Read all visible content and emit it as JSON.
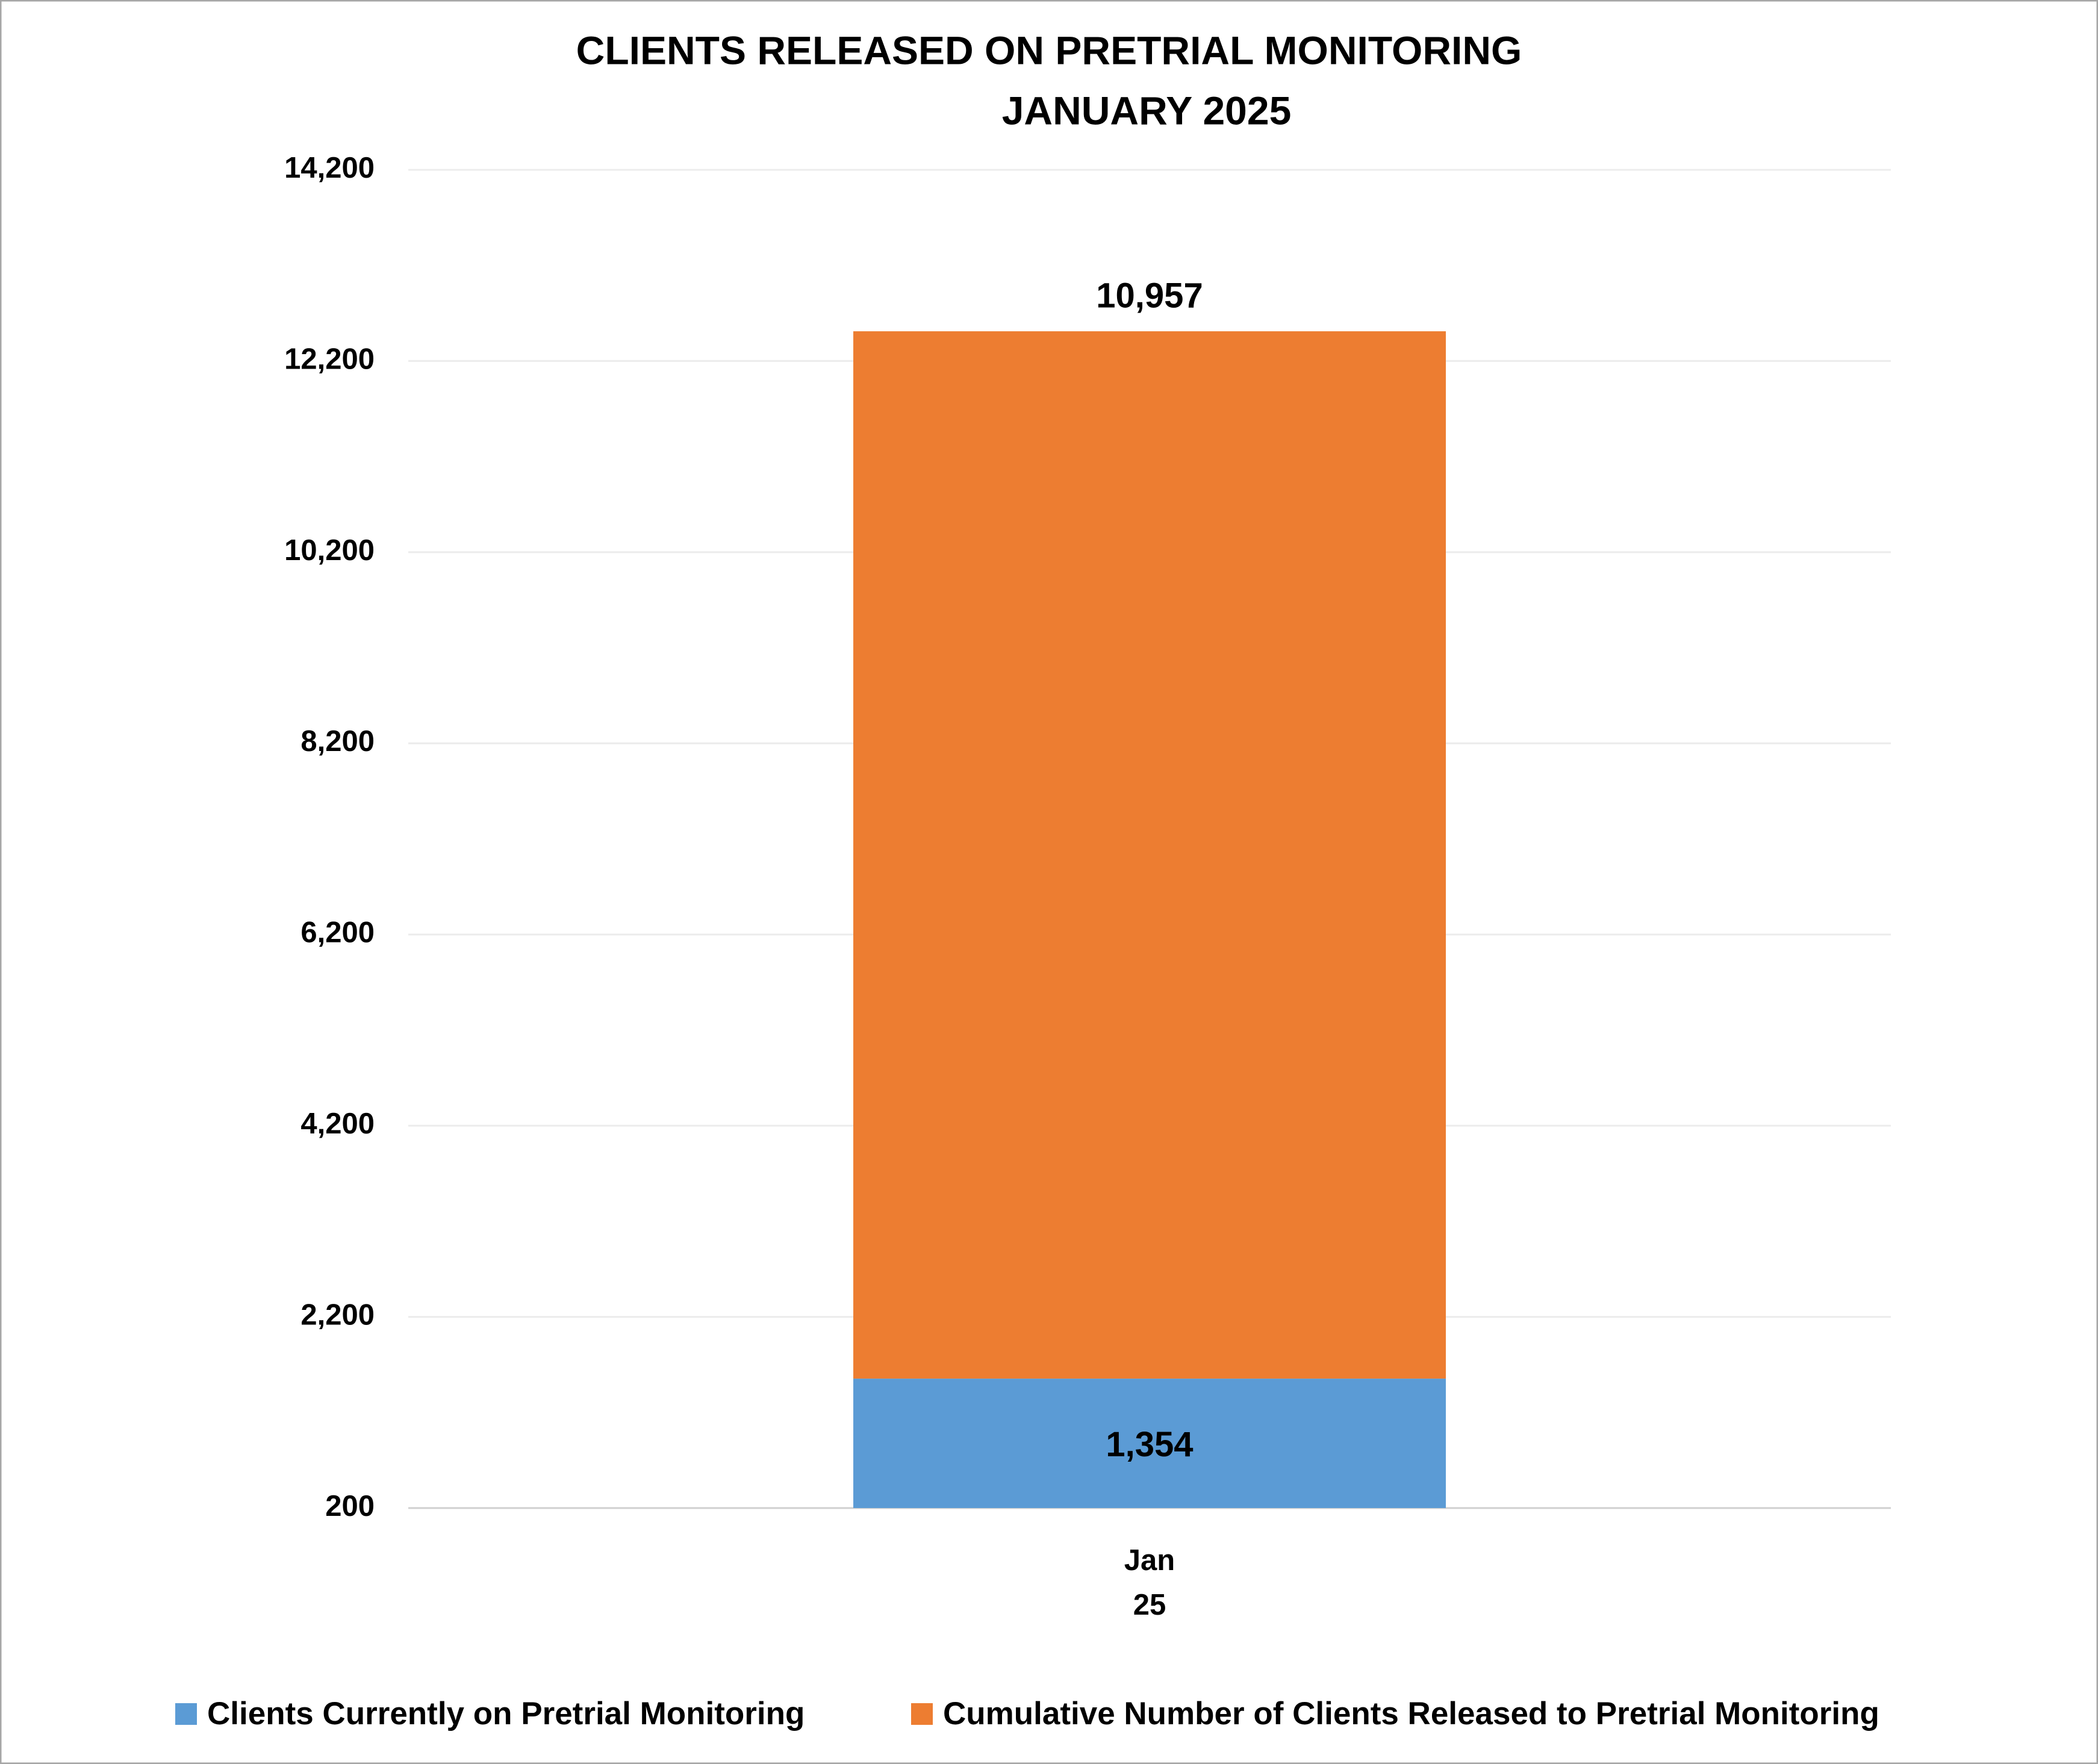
{
  "chart_data": {
    "type": "stacked_bar",
    "title": "CLIENTS RELEASED ON PRETRIAL MONITORING",
    "subtitle": "JANUARY 2025",
    "categories": [
      "Jan 25"
    ],
    "series": [
      {
        "name": "Clients Currently on Pretrial Monitoring",
        "color": "#5b9bd5",
        "values": [
          1354
        ],
        "value_labels": [
          "1,354"
        ]
      },
      {
        "name": "Cumulative Number of Clients Released to Pretrial Monitoring",
        "color": "#ed7d31",
        "values": [
          10957
        ],
        "value_labels": [
          "10,957"
        ]
      }
    ],
    "ylim": [
      200,
      14200
    ],
    "yticks": [
      200,
      {
        "value": 2200,
        "label": "2,200"
      },
      {
        "value": 4200,
        "label": "4,200"
      },
      {
        "value": 6200,
        "label": "6,200"
      },
      {
        "value": 8200,
        "label": "8,200"
      },
      {
        "value": 10200,
        "label": "10,200"
      },
      {
        "value": 12200,
        "label": "12,200"
      },
      {
        "value": 14200,
        "label": "14,200"
      }
    ],
    "grid": true,
    "legend": "bottom"
  }
}
